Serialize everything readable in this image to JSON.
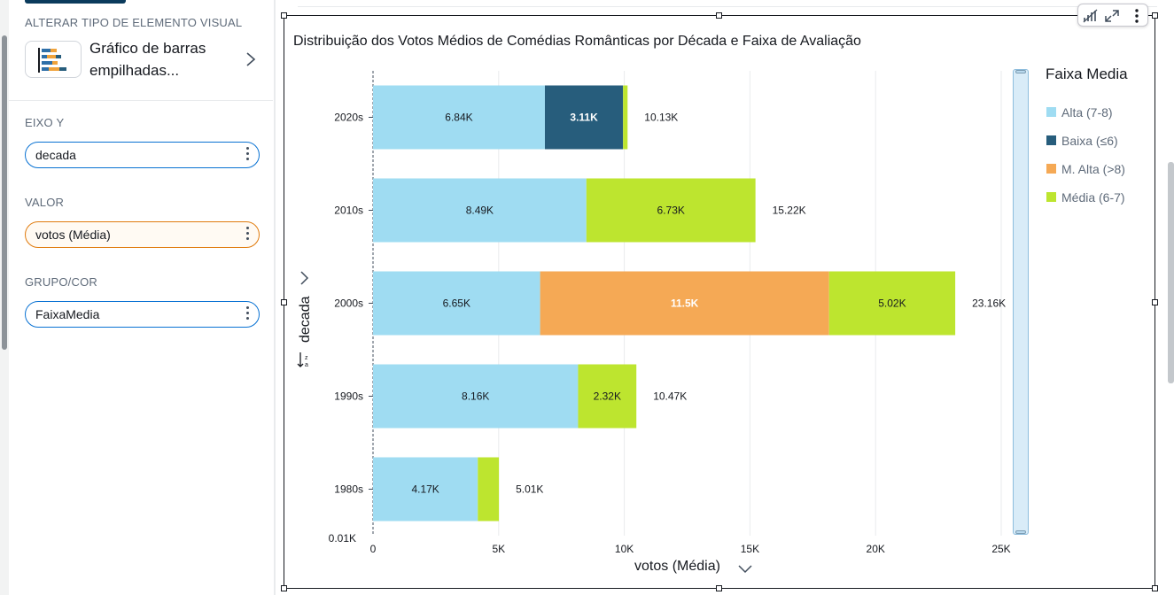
{
  "sidebar": {
    "visual_type_section": "ALTERAR TIPO DE ELEMENTO VISUAL",
    "visual_type_label": "Gráfico de barras empilhadas...",
    "y_axis_section": "EIXO Y",
    "y_axis_field": "decada",
    "value_section": "VALOR",
    "value_field": "votos (Média)",
    "group_section": "GRUPO/COR",
    "group_field": "FaixaMedia"
  },
  "chart": {
    "title": "Distribuição dos Votos Médios de Comédias Românticas por Década e Faixa de Avaliação",
    "y_axis_title": "decada",
    "x_axis_title": "votos (Média)",
    "legend_title": "Faixa Media"
  },
  "chart_data": {
    "type": "bar",
    "orientation": "horizontal",
    "stacked": true,
    "title": "Distribuição dos Votos Médios de Comédias Românticas por Década e Faixa de Avaliação",
    "xlabel": "votos (Média)",
    "ylabel": "decada",
    "xlim": [
      0,
      25000
    ],
    "x_ticks": [
      "0",
      "5K",
      "10K",
      "15K",
      "20K",
      "25K"
    ],
    "y_axis_min_label": "0.01K",
    "categories": [
      "2020s",
      "2010s",
      "2000s",
      "1990s",
      "1980s"
    ],
    "series": [
      {
        "name": "Alta (7-8)",
        "color": "#9fdcf2",
        "values": [
          6840,
          8490,
          6650,
          8160,
          4170
        ],
        "labels": [
          "6.84K",
          "8.49K",
          "6.65K",
          "8.16K",
          "4.17K"
        ]
      },
      {
        "name": "Baixa (≤6)",
        "color": "#275d7c",
        "values": [
          3110,
          0,
          0,
          0,
          0
        ],
        "labels": [
          "3.11K",
          "",
          "",
          "",
          ""
        ]
      },
      {
        "name": "M. Alta (>8)",
        "color": "#f5a955",
        "values": [
          0,
          0,
          11500,
          0,
          0
        ],
        "labels": [
          "",
          "",
          "11.5K",
          "",
          ""
        ]
      },
      {
        "name": "Média (6-7)",
        "color": "#bde52f",
        "values": [
          180,
          6730,
          5020,
          2320,
          840
        ],
        "labels": [
          "",
          "6.73K",
          "5.02K",
          "2.32K",
          ""
        ]
      }
    ],
    "totals": [
      "10.13K",
      "15.22K",
      "23.16K",
      "10.47K",
      "5.01K"
    ],
    "grid": true,
    "legend_position": "right"
  }
}
